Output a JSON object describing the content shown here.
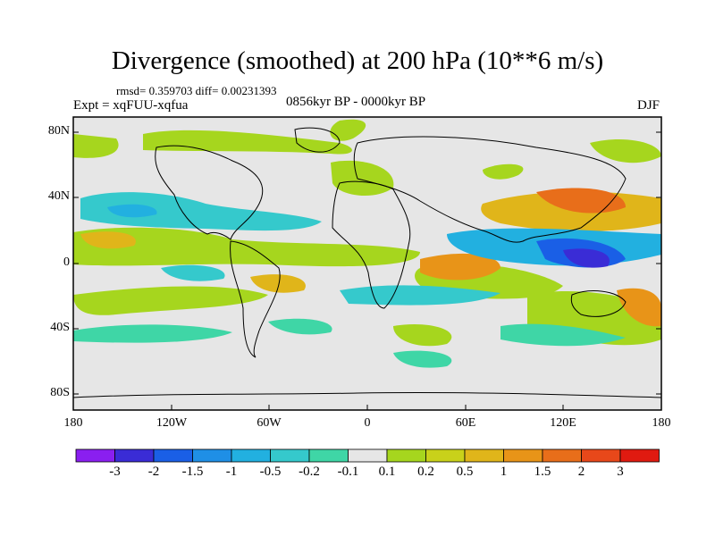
{
  "title": "Divergence (smoothed) at 200 hPa (10**6 m/s)",
  "stats": {
    "rmsd_label": "rmsd=",
    "rmsd": "0.359703",
    "diff_label": "diff=",
    "diff": "0.00231393"
  },
  "experiment": "Expt = xqFUU-xqfua",
  "period": "0856kyr BP - 0000kyr BP",
  "season": "DJF",
  "map": {
    "projection": "cylindrical-equidistant",
    "lat_ticks": [
      "80N",
      "40N",
      "0",
      "40S",
      "80S"
    ],
    "lon_ticks": [
      "180",
      "120W",
      "60W",
      "0",
      "60E",
      "120E",
      "180"
    ]
  },
  "colorbar": {
    "labels": [
      "-3",
      "-2",
      "-1.5",
      "-1",
      "-0.5",
      "-0.2",
      "-0.1",
      "0.1",
      "0.2",
      "0.5",
      "1",
      "1.5",
      "2",
      "3"
    ],
    "colors": [
      "#8a1ff0",
      "#3a2cd6",
      "#1a5fe6",
      "#1f8fe6",
      "#22b0e0",
      "#35c9cc",
      "#3fd6a6",
      "#e6e6e6",
      "#a6d61e",
      "#c9d11a",
      "#e0b51a",
      "#e89418",
      "#e86e1a",
      "#e8481a",
      "#e01a10"
    ]
  }
}
